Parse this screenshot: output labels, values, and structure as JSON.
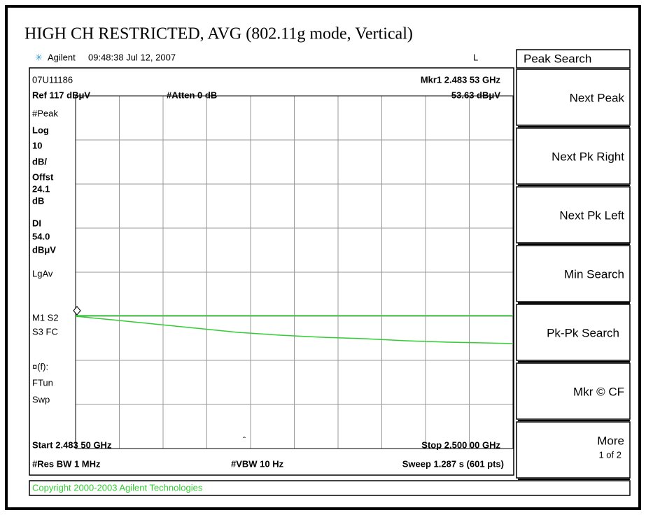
{
  "title": "HIGH CH RESTRICTED, AVG (802.11g mode, Vertical)",
  "header": {
    "brand": "Agilent",
    "timestamp": "09:48:38  Jul 12, 2007",
    "flag": "L"
  },
  "screen": {
    "id": "07U11186",
    "marker": "Mkr1  2.483 53 GHz",
    "ref": "Ref 117 dBμV",
    "atten": "#Atten 0 dB",
    "marker_value": "53.63 dBμV",
    "left_labels": [
      "#Peak",
      "Log",
      "10",
      "dB/",
      "Offst",
      "24.1",
      "dB",
      "DI",
      "54.0",
      "dBμV",
      "LgAv",
      "M1  S2",
      "S3  FC",
      "¤(f):",
      "FTun",
      "Swp"
    ],
    "start": "Start 2.483 50 GHz",
    "stop": "Stop 2.500 00 GHz",
    "rbw": "#Res BW 1 MHz",
    "vbw": "#VBW 10 Hz",
    "sweep": "Sweep 1.287 s (601 pts)"
  },
  "softkeys": {
    "title": "Peak Search",
    "keys": [
      "Next Peak",
      "Next Pk Right",
      "Next Pk Left",
      "Min Search",
      "Pk-Pk Search",
      "Mkr © CF",
      "More"
    ],
    "more_sub": "1 of 2"
  },
  "status": "Copyright 2000-2003 Agilent Technologies"
}
